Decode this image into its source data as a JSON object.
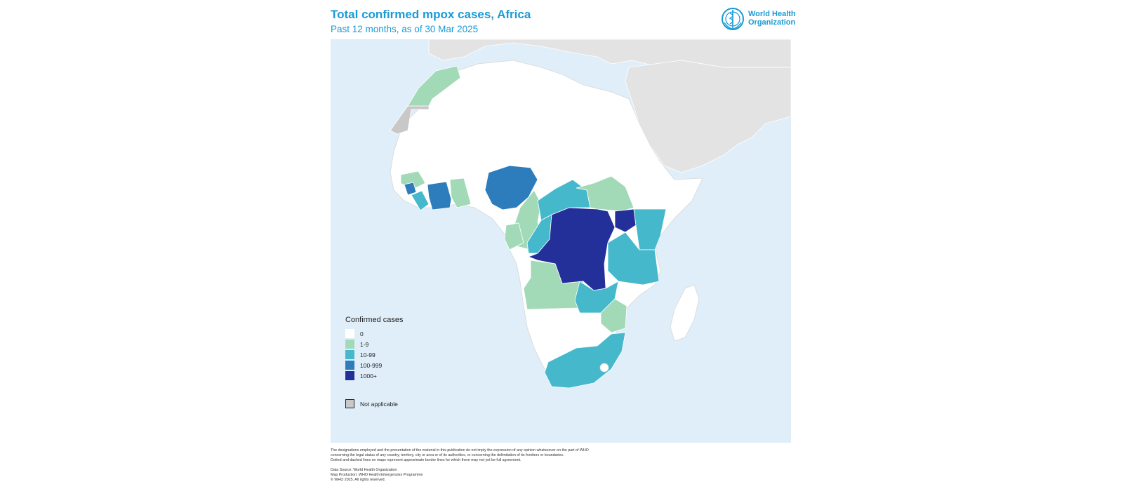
{
  "title": "Total confirmed mpox cases, Africa",
  "subtitle": "Past 12 months, as of 30 Mar 2025",
  "logo": {
    "line1": "World Health",
    "line2": "Organization",
    "icon": "who-emblem-icon"
  },
  "colors": {
    "ocean": "#dfeef8",
    "other_land": "#e3e3e3",
    "zero": "#ffffff",
    "c1_9": "#a2dab8",
    "c10_99": "#45b8cc",
    "c100_999": "#2d7dbd",
    "c1000_plus": "#24309a",
    "not_applicable": "#c8c8c8",
    "title": "#1a9ad6"
  },
  "legend": {
    "title": "Confirmed cases",
    "items": [
      {
        "label": "0",
        "color": "#ffffff"
      },
      {
        "label": "1-9",
        "color": "#a2dab8"
      },
      {
        "label": "10-99",
        "color": "#45b8cc"
      },
      {
        "label": "100-999",
        "color": "#2d7dbd"
      },
      {
        "label": "1000+",
        "color": "#24309a"
      }
    ],
    "not_applicable": {
      "label": "Not applicable",
      "color": "#c8c8c8"
    }
  },
  "disclaimer": [
    "The designations employed and the presentation of the material in this publication do not imply the expression of any opinion whatsoever on the part of WHO",
    "concerning the legal status of any country, territory, city or area or of its authorities, or concerning the delimitation of its frontiers or boundaries.",
    "Dotted and dashed lines on maps represent approximate border lines for which there may not yet be full agreement."
  ],
  "credits": [
    "Data Source: World Health Organization",
    "Map Production: WHO Health Emergencies Programme",
    "© WHO 2025. All rights reserved."
  ]
}
